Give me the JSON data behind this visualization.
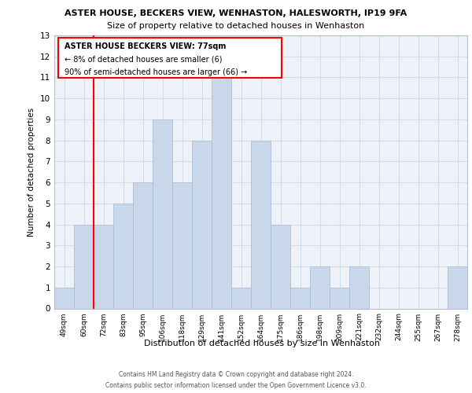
{
  "title1": "ASTER HOUSE, BECKERS VIEW, WENHASTON, HALESWORTH, IP19 9FA",
  "title2": "Size of property relative to detached houses in Wenhaston",
  "xlabel": "Distribution of detached houses by size in Wenhaston",
  "ylabel": "Number of detached properties",
  "bin_labels": [
    "49sqm",
    "60sqm",
    "72sqm",
    "83sqm",
    "95sqm",
    "106sqm",
    "118sqm",
    "129sqm",
    "141sqm",
    "152sqm",
    "164sqm",
    "175sqm",
    "186sqm",
    "198sqm",
    "209sqm",
    "221sqm",
    "232sqm",
    "244sqm",
    "255sqm",
    "267sqm",
    "278sqm"
  ],
  "bar_heights": [
    1,
    4,
    4,
    5,
    6,
    9,
    6,
    8,
    11,
    1,
    8,
    4,
    1,
    2,
    1,
    2,
    0,
    0,
    0,
    0,
    2
  ],
  "bar_color": "#c8d8ea",
  "bar_edge_color": "#a8c0d8",
  "red_line_bar_index": 2,
  "ylim": [
    0,
    13
  ],
  "yticks": [
    0,
    1,
    2,
    3,
    4,
    5,
    6,
    7,
    8,
    9,
    10,
    11,
    12,
    13
  ],
  "annotation_title": "ASTER HOUSE BECKERS VIEW: 77sqm",
  "annotation_line1": "← 8% of detached houses are smaller (6)",
  "annotation_line2": "90% of semi-detached houses are larger (66) →",
  "footnote1": "Contains HM Land Registry data © Crown copyright and database right 2024.",
  "footnote2": "Contains public sector information licensed under the Open Government Licence v3.0.",
  "grid_color": "#d0dce8",
  "background_color": "#eef2f8"
}
